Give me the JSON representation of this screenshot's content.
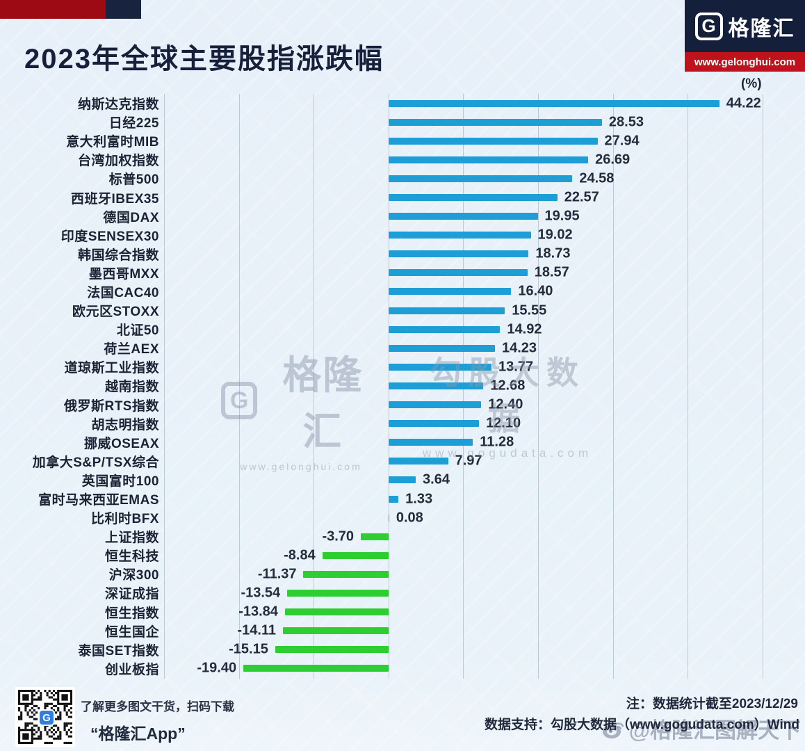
{
  "header": {
    "title": "2023年全球主要股指涨跌幅",
    "logo_g": "G",
    "logo_text": "格隆汇",
    "logo_url": "www.gelonghui.com",
    "unit_label": "(%)"
  },
  "chart_data": {
    "type": "bar",
    "orientation": "horizontal",
    "title": "2023年全球主要股指涨跌幅",
    "unit": "%",
    "axis": {
      "min": -30,
      "max": 54,
      "grid_step": 10,
      "grid": true
    },
    "colors": {
      "positive": "#1e9ed7",
      "negative": "#2ecd32"
    },
    "categories": [
      "纳斯达克指数",
      "日经225",
      "意大利富时MIB",
      "台湾加权指数",
      "标普500",
      "西班牙IBEX35",
      "德国DAX",
      "印度SENSEX30",
      "韩国综合指数",
      "墨西哥MXX",
      "法国CAC40",
      "欧元区STOXX",
      "北证50",
      "荷兰AEX",
      "道琼斯工业指数",
      "越南指数",
      "俄罗斯RTS指数",
      "胡志明指数",
      "挪威OSEAX",
      "加拿大S&P/TSX综合",
      "英国富时100",
      "富时马来西亚EMAS",
      "比利时BFX",
      "上证指数",
      "恒生科技",
      "沪深300",
      "深证成指",
      "恒生指数",
      "恒生国企",
      "泰国SET指数",
      "创业板指"
    ],
    "values": [
      44.22,
      28.53,
      27.94,
      26.69,
      24.58,
      22.57,
      19.95,
      19.02,
      18.73,
      18.57,
      16.4,
      15.55,
      14.92,
      14.23,
      13.77,
      12.68,
      12.4,
      12.1,
      11.28,
      7.97,
      3.64,
      1.33,
      0.08,
      -3.7,
      -8.84,
      -11.37,
      -13.54,
      -13.84,
      -14.11,
      -15.15,
      -19.4
    ]
  },
  "watermarks": {
    "center_left_g": "G",
    "center_left_logo": "格隆汇",
    "center_left_url": "www.gelonghui.com",
    "center_right": "勾股大数据",
    "center_right_url": "www.gogudata.com",
    "weibo": "@格隆汇图解天下"
  },
  "footer": {
    "qr_caption_line1": "了解更多图文干货，扫码下载",
    "qr_caption_line2": "“格隆汇App”",
    "note1": "注：数据统计截至2023/12/29",
    "note2": "数据支持：勾股大数据（www.gogudata.com）Wind"
  }
}
